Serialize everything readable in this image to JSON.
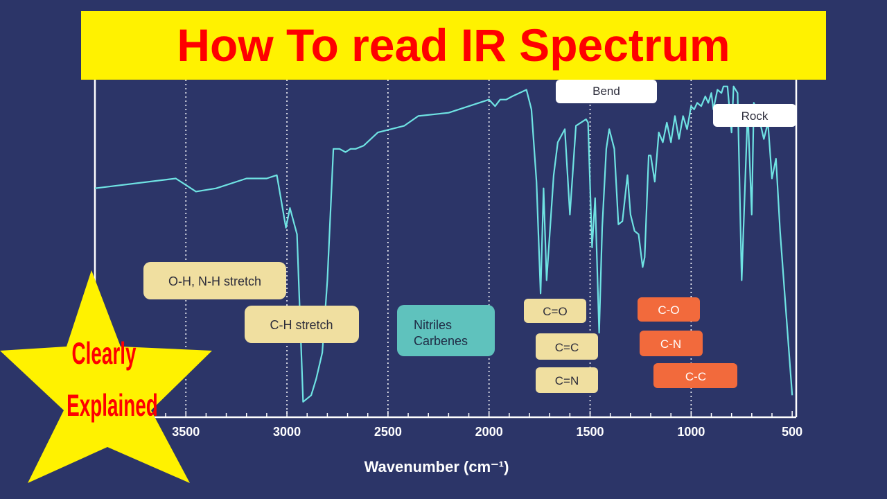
{
  "banner": {
    "title": "How To read IR Spectrum"
  },
  "badge": {
    "line1": "Clearly",
    "line2": "Explained"
  },
  "colors": {
    "background": "#2c3568",
    "line": "#6fe3e3",
    "banner": "#fff200",
    "banner_text": "#ff0000",
    "star": "#fff200",
    "star_text": "#ff0000",
    "label_yellow": "#f0dfa0",
    "label_teal": "#5fc2bd",
    "label_orange": "#f26a3c",
    "label_white": "#ffffff"
  },
  "chart_data": {
    "type": "line",
    "title": "How To read IR Spectrum",
    "xlabel": "Wavenumber (cm⁻¹)",
    "ylabel": "",
    "xlim": [
      3950,
      480
    ],
    "ylim": [
      0,
      100
    ],
    "x_reversed": true,
    "x_ticks": [
      3500,
      3000,
      2500,
      2000,
      1500,
      1000,
      500
    ],
    "gridlines_x": [
      3500,
      3000,
      2500,
      2000,
      1500,
      1000
    ],
    "grid": "dotted vertical",
    "series": [
      {
        "values": [
          [
            3950,
            68
          ],
          [
            3550,
            71
          ],
          [
            3450,
            67
          ],
          [
            3350,
            68
          ],
          [
            3200,
            71
          ],
          [
            3100,
            71
          ],
          [
            3050,
            72
          ],
          [
            3005,
            56
          ],
          [
            2985,
            62
          ],
          [
            2950,
            54
          ],
          [
            2920,
            3
          ],
          [
            2880,
            5
          ],
          [
            2855,
            10
          ],
          [
            2825,
            18
          ],
          [
            2800,
            40
          ],
          [
            2770,
            80
          ],
          [
            2740,
            80
          ],
          [
            2710,
            79
          ],
          [
            2685,
            80
          ],
          [
            2660,
            80
          ],
          [
            2620,
            81
          ],
          [
            2550,
            85
          ],
          [
            2420,
            87
          ],
          [
            2350,
            90
          ],
          [
            2200,
            91
          ],
          [
            2000,
            95
          ],
          [
            1970,
            93
          ],
          [
            1945,
            95
          ],
          [
            1915,
            95
          ],
          [
            1885,
            96
          ],
          [
            1815,
            98
          ],
          [
            1790,
            92
          ],
          [
            1765,
            70
          ],
          [
            1745,
            36
          ],
          [
            1730,
            68
          ],
          [
            1715,
            40
          ],
          [
            1680,
            72
          ],
          [
            1660,
            82
          ],
          [
            1625,
            86
          ],
          [
            1600,
            60
          ],
          [
            1570,
            87
          ],
          [
            1520,
            89
          ],
          [
            1510,
            88
          ],
          [
            1490,
            50
          ],
          [
            1475,
            65
          ],
          [
            1455,
            24
          ],
          [
            1440,
            56
          ],
          [
            1420,
            80
          ],
          [
            1405,
            86
          ],
          [
            1380,
            80
          ],
          [
            1360,
            57
          ],
          [
            1340,
            58
          ],
          [
            1315,
            72
          ],
          [
            1300,
            60
          ],
          [
            1280,
            55
          ],
          [
            1260,
            54
          ],
          [
            1240,
            44
          ],
          [
            1230,
            47
          ],
          [
            1210,
            78
          ],
          [
            1200,
            78
          ],
          [
            1180,
            70
          ],
          [
            1160,
            85
          ],
          [
            1140,
            82
          ],
          [
            1120,
            88
          ],
          [
            1100,
            82
          ],
          [
            1080,
            90
          ],
          [
            1060,
            83
          ],
          [
            1040,
            90
          ],
          [
            1020,
            86
          ],
          [
            1000,
            93
          ],
          [
            985,
            92
          ],
          [
            970,
            94
          ],
          [
            950,
            93
          ],
          [
            930,
            96
          ],
          [
            915,
            94
          ],
          [
            900,
            97
          ],
          [
            890,
            92
          ],
          [
            870,
            98
          ],
          [
            850,
            97
          ],
          [
            840,
            99
          ],
          [
            820,
            99
          ],
          [
            800,
            85
          ],
          [
            790,
            99
          ],
          [
            770,
            97
          ],
          [
            750,
            40
          ],
          [
            720,
            92
          ],
          [
            700,
            60
          ],
          [
            690,
            94
          ],
          [
            670,
            91
          ],
          [
            640,
            83
          ],
          [
            620,
            88
          ],
          [
            600,
            71
          ],
          [
            580,
            77
          ],
          [
            560,
            55
          ],
          [
            530,
            30
          ],
          [
            500,
            5
          ]
        ]
      }
    ],
    "annotations": {
      "region_labels": [
        {
          "text": "O-H, N-H stretch",
          "style": "yellow"
        },
        {
          "text": "C-H stretch",
          "style": "yellow"
        },
        {
          "text": "Nitriles\nCarbenes",
          "style": "teal"
        },
        {
          "text": "C=O",
          "style": "yellow"
        },
        {
          "text": "C=C",
          "style": "yellow"
        },
        {
          "text": "C=N",
          "style": "yellow"
        },
        {
          "text": "C-O",
          "style": "orange"
        },
        {
          "text": "C-N",
          "style": "orange"
        },
        {
          "text": "C-C",
          "style": "orange"
        },
        {
          "text": "Bend",
          "style": "white"
        },
        {
          "text": "Rock",
          "style": "white"
        }
      ]
    }
  }
}
